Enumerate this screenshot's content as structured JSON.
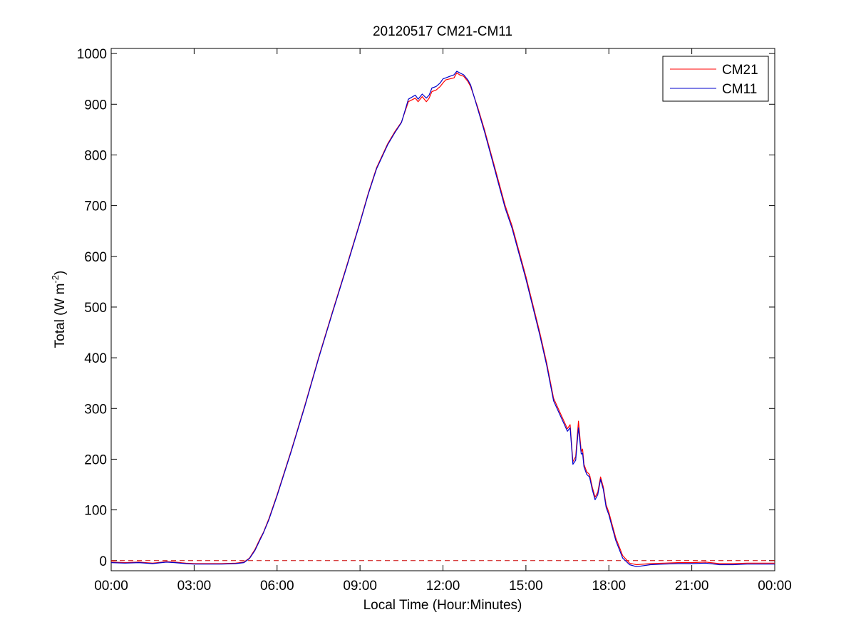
{
  "chart_data": {
    "type": "line",
    "title": "20120517 CM21-CM11",
    "xlabel": "Local Time (Hour:Minutes)",
    "ylabel_main": "Total (W m",
    "ylabel_sup": "-2",
    "ylabel_close": ")",
    "x_unit": "hours",
    "xlim": [
      0,
      24
    ],
    "ylim": [
      -20,
      1010
    ],
    "x_ticks": [
      0,
      3,
      6,
      9,
      12,
      15,
      18,
      21,
      24
    ],
    "x_tick_labels": [
      "00:00",
      "03:00",
      "06:00",
      "09:00",
      "12:00",
      "15:00",
      "18:00",
      "21:00",
      "00:00"
    ],
    "y_ticks": [
      0,
      100,
      200,
      300,
      400,
      500,
      600,
      700,
      800,
      900,
      1000
    ],
    "y_tick_labels": [
      "0",
      "100",
      "200",
      "300",
      "400",
      "500",
      "600",
      "700",
      "800",
      "900",
      "1000"
    ],
    "grid": false,
    "legend_position": "top-right",
    "reference_line": {
      "y": 0,
      "style": "dashed",
      "color": "#cc0000"
    },
    "series": [
      {
        "name": "CM21",
        "color": "#ff0000",
        "x": [
          0,
          0.5,
          1,
          1.5,
          2,
          2.3,
          2.7,
          3,
          3.5,
          4,
          4.5,
          4.8,
          5.0,
          5.2,
          5.4,
          5.5,
          5.7,
          6.0,
          6.5,
          7.0,
          7.5,
          8.0,
          8.5,
          9.0,
          9.3,
          9.6,
          10.0,
          10.25,
          10.5,
          10.75,
          11.0,
          11.1,
          11.25,
          11.4,
          11.5,
          11.6,
          11.75,
          11.9,
          12.0,
          12.1,
          12.25,
          12.4,
          12.5,
          12.6,
          12.75,
          12.9,
          13.0,
          13.25,
          13.5,
          13.75,
          14.0,
          14.25,
          14.5,
          14.75,
          15.0,
          15.25,
          15.5,
          15.75,
          16.0,
          16.25,
          16.5,
          16.6,
          16.7,
          16.8,
          16.9,
          17.0,
          17.05,
          17.1,
          17.2,
          17.3,
          17.4,
          17.5,
          17.6,
          17.7,
          17.8,
          17.9,
          18.0,
          18.1,
          18.25,
          18.5,
          18.75,
          19.0,
          19.5,
          20.0,
          20.5,
          21.0,
          21.5,
          22.0,
          22.5,
          23.0,
          23.5,
          24.0
        ],
        "values": [
          -3,
          -4,
          -3,
          -5,
          -2,
          -3,
          -5,
          -6,
          -6,
          -6,
          -5,
          -3,
          5,
          22,
          45,
          55,
          82,
          130,
          215,
          305,
          400,
          490,
          578,
          668,
          725,
          775,
          822,
          845,
          865,
          905,
          912,
          905,
          915,
          905,
          912,
          925,
          928,
          935,
          942,
          948,
          950,
          952,
          962,
          958,
          955,
          945,
          935,
          895,
          850,
          800,
          750,
          700,
          660,
          610,
          560,
          505,
          450,
          390,
          320,
          290,
          260,
          268,
          195,
          205,
          275,
          215,
          220,
          190,
          175,
          170,
          145,
          125,
          135,
          165,
          145,
          110,
          95,
          75,
          45,
          10,
          -5,
          -8,
          -6,
          -5,
          -4,
          -4,
          -3,
          -6,
          -6,
          -5,
          -5,
          -5
        ]
      },
      {
        "name": "CM11",
        "color": "#0000cc",
        "x": [
          0,
          0.5,
          1,
          1.5,
          2,
          2.3,
          2.7,
          3,
          3.5,
          4,
          4.5,
          4.8,
          5.0,
          5.2,
          5.4,
          5.5,
          5.7,
          6.0,
          6.5,
          7.0,
          7.5,
          8.0,
          8.5,
          9.0,
          9.3,
          9.6,
          10.0,
          10.25,
          10.5,
          10.75,
          11.0,
          11.1,
          11.25,
          11.4,
          11.5,
          11.6,
          11.75,
          11.9,
          12.0,
          12.1,
          12.25,
          12.4,
          12.5,
          12.6,
          12.75,
          12.9,
          13.0,
          13.25,
          13.5,
          13.75,
          14.0,
          14.25,
          14.5,
          14.75,
          15.0,
          15.25,
          15.5,
          15.75,
          16.0,
          16.25,
          16.5,
          16.6,
          16.7,
          16.8,
          16.9,
          17.0,
          17.05,
          17.1,
          17.2,
          17.3,
          17.4,
          17.5,
          17.6,
          17.7,
          17.8,
          17.9,
          18.0,
          18.1,
          18.25,
          18.5,
          18.75,
          19.0,
          19.5,
          20.0,
          20.5,
          21.0,
          21.5,
          22.0,
          22.5,
          23.0,
          23.5,
          24.0
        ],
        "values": [
          -4,
          -5,
          -4,
          -6,
          -3,
          -4,
          -6,
          -7,
          -7,
          -7,
          -6,
          -4,
          4,
          20,
          43,
          54,
          80,
          128,
          213,
          303,
          398,
          488,
          576,
          666,
          723,
          773,
          820,
          843,
          864,
          910,
          918,
          910,
          920,
          912,
          918,
          932,
          935,
          942,
          950,
          952,
          955,
          958,
          965,
          962,
          958,
          948,
          938,
          892,
          846,
          796,
          745,
          695,
          655,
          605,
          555,
          500,
          445,
          385,
          315,
          285,
          255,
          262,
          190,
          198,
          262,
          210,
          212,
          185,
          170,
          165,
          140,
          120,
          130,
          160,
          140,
          105,
          90,
          70,
          40,
          5,
          -8,
          -12,
          -8,
          -7,
          -6,
          -6,
          -5,
          -8,
          -8,
          -7,
          -7,
          -7
        ]
      }
    ]
  }
}
